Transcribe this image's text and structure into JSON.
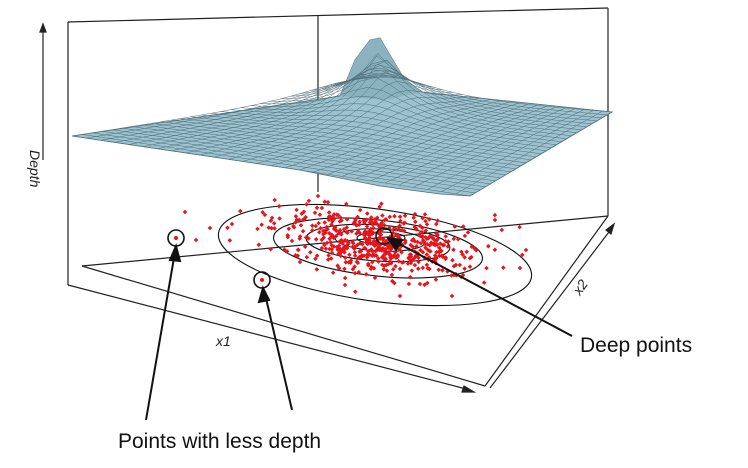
{
  "figure": {
    "axis_labels": {
      "z": "Depth",
      "x": "x1",
      "y": "x2"
    },
    "annotations": {
      "deep": "Deep points",
      "less_deep": "Points with less depth"
    }
  },
  "colors": {
    "surface_fill": "#9cc3cf",
    "surface_mesh": "#4f6f79",
    "points": "#e8141b",
    "box_lines": "#222222",
    "contours": "#111111"
  }
}
